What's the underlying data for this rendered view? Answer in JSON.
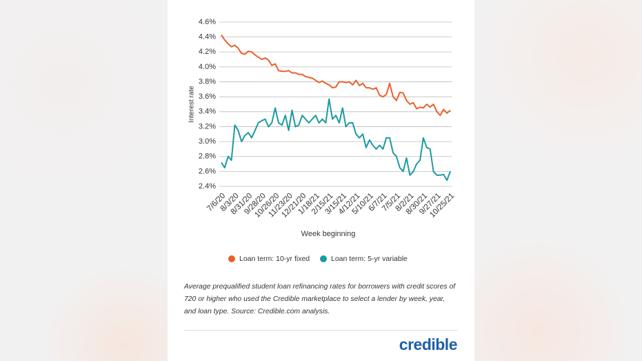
{
  "chart_data": {
    "type": "line",
    "ylabel": "Interest rate",
    "xlabel": "Week beginning",
    "categories": [
      "7/6/20",
      null,
      null,
      null,
      "8/3/20",
      null,
      null,
      null,
      "8/31/20",
      null,
      null,
      null,
      "9/28/20",
      null,
      null,
      null,
      "10/26/20",
      null,
      null,
      null,
      "11/23/20",
      null,
      null,
      null,
      "12/21/20",
      null,
      null,
      null,
      "1/18/21",
      null,
      null,
      null,
      "2/15/21",
      null,
      null,
      null,
      "3/15/21",
      null,
      null,
      null,
      "4/12/21",
      null,
      null,
      null,
      "5/10/21",
      null,
      null,
      null,
      "6/7/21",
      null,
      null,
      null,
      "7/5/21",
      null,
      null,
      null,
      "8/2/21",
      null,
      null,
      null,
      "8/30/21",
      null,
      null,
      null,
      "9/27/21",
      null,
      null,
      null,
      "10/25/21"
    ],
    "series": [
      {
        "name": "Loan term: 10-yr fixed",
        "color": "#e8602c",
        "values": [
          4.43,
          4.36,
          4.31,
          4.27,
          4.29,
          4.25,
          4.18,
          4.17,
          4.21,
          4.2,
          4.16,
          4.13,
          4.1,
          4.12,
          4.09,
          4.02,
          4.04,
          3.95,
          3.94,
          3.94,
          3.95,
          3.92,
          3.92,
          3.9,
          3.9,
          3.87,
          3.86,
          3.85,
          3.82,
          3.79,
          3.81,
          3.78,
          3.76,
          3.72,
          3.73,
          3.8,
          3.8,
          3.79,
          3.8,
          3.76,
          3.82,
          3.75,
          3.78,
          3.72,
          3.72,
          3.7,
          3.72,
          3.62,
          3.6,
          3.63,
          3.78,
          3.6,
          3.55,
          3.66,
          3.65,
          3.55,
          3.5,
          3.52,
          3.44,
          3.46,
          3.45,
          3.5,
          3.46,
          3.5,
          3.4,
          3.35,
          3.43,
          3.38,
          3.42
        ]
      },
      {
        "name": "Loan term: 5-yr variable",
        "color": "#1a9ba0",
        "values": [
          2.72,
          2.65,
          2.8,
          2.75,
          3.22,
          3.15,
          3.0,
          3.08,
          3.12,
          3.05,
          3.15,
          3.25,
          3.28,
          3.3,
          3.2,
          3.25,
          3.45,
          3.25,
          3.22,
          3.35,
          3.15,
          3.42,
          3.2,
          3.22,
          3.35,
          3.3,
          3.25,
          3.3,
          3.35,
          3.25,
          3.3,
          3.25,
          3.57,
          3.3,
          3.35,
          3.25,
          3.45,
          3.2,
          3.25,
          3.25,
          3.1,
          3.05,
          3.1,
          2.92,
          3.02,
          2.95,
          2.9,
          2.95,
          2.9,
          3.05,
          3.05,
          2.85,
          2.8,
          2.65,
          2.6,
          2.78,
          2.55,
          2.6,
          2.7,
          2.75,
          3.05,
          2.92,
          2.9,
          2.6,
          2.55,
          2.55,
          2.56,
          2.48,
          2.6
        ]
      }
    ],
    "ylim": [
      2.4,
      4.6
    ],
    "yticks": [
      {
        "value": 2.4,
        "label": "2.4%"
      },
      {
        "value": 2.6,
        "label": "2.6%"
      },
      {
        "value": 2.8,
        "label": "2.8%"
      },
      {
        "value": 3.0,
        "label": "3.0%"
      },
      {
        "value": 3.2,
        "label": "3.2%"
      },
      {
        "value": 3.4,
        "label": "3.4%"
      },
      {
        "value": 3.6,
        "label": "3.6%"
      },
      {
        "value": 3.8,
        "label": "3.8%"
      },
      {
        "value": 4.0,
        "label": "4.0%"
      },
      {
        "value": 4.2,
        "label": "4.2%"
      },
      {
        "value": 4.4,
        "label": "4.4%"
      },
      {
        "value": 4.6,
        "label": "4.6%"
      }
    ],
    "grid": true,
    "legend": "bottom"
  },
  "caption": "Average prequalified student loan refinancing rates for borrowers with credit scores of 720 or higher who used the Credible marketplace to select a lender by week, year, and loan type. Source: Credible.com analysis.",
  "brand": "credible"
}
